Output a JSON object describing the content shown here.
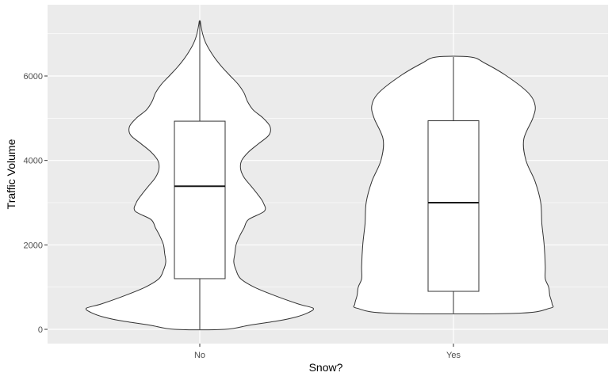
{
  "chart_data": {
    "type": "violin",
    "xlabel": "Snow?",
    "ylabel": "Traffic Volume",
    "categories": [
      "No",
      "Yes"
    ],
    "ylim": [
      -350,
      7700
    ],
    "yticks": [
      0,
      2000,
      4000,
      6000
    ],
    "grid": true,
    "colors": {
      "panel": "#ebebeb",
      "grid": "#ffffff",
      "fill": "#ffffff",
      "stroke": "#333333"
    },
    "groups": [
      {
        "name": "No",
        "min": 0,
        "q1": 1200,
        "median": 3390,
        "q3": 4930,
        "max": 7300,
        "density_profile": [
          [
            0,
            0.22
          ],
          [
            100,
            0.44
          ],
          [
            200,
            0.69
          ],
          [
            300,
            0.86
          ],
          [
            400,
            0.96
          ],
          [
            500,
            1.0
          ],
          [
            600,
            0.87
          ],
          [
            800,
            0.66
          ],
          [
            1000,
            0.48
          ],
          [
            1200,
            0.36
          ],
          [
            1400,
            0.32
          ],
          [
            1600,
            0.3
          ],
          [
            1800,
            0.31
          ],
          [
            2000,
            0.32
          ],
          [
            2200,
            0.35
          ],
          [
            2400,
            0.39
          ],
          [
            2600,
            0.43
          ],
          [
            2800,
            0.57
          ],
          [
            3000,
            0.56
          ],
          [
            3200,
            0.51
          ],
          [
            3400,
            0.45
          ],
          [
            3600,
            0.39
          ],
          [
            3800,
            0.36
          ],
          [
            4000,
            0.37
          ],
          [
            4200,
            0.43
          ],
          [
            4400,
            0.52
          ],
          [
            4600,
            0.61
          ],
          [
            4800,
            0.62
          ],
          [
            5000,
            0.56
          ],
          [
            5200,
            0.47
          ],
          [
            5400,
            0.42
          ],
          [
            5600,
            0.39
          ],
          [
            5800,
            0.34
          ],
          [
            6000,
            0.27
          ],
          [
            6200,
            0.2
          ],
          [
            6400,
            0.14
          ],
          [
            6600,
            0.09
          ],
          [
            6800,
            0.05
          ],
          [
            7000,
            0.025
          ],
          [
            7200,
            0.01
          ],
          [
            7300,
            0.004
          ]
        ]
      },
      {
        "name": "Yes",
        "min": 380,
        "q1": 900,
        "median": 3000,
        "q3": 4940,
        "max": 6450,
        "density_profile": [
          [
            380,
            0.55
          ],
          [
            500,
            0.85
          ],
          [
            600,
            0.87
          ],
          [
            800,
            0.85
          ],
          [
            1000,
            0.84
          ],
          [
            1200,
            0.81
          ],
          [
            1500,
            0.81
          ],
          [
            2000,
            0.8
          ],
          [
            2500,
            0.78
          ],
          [
            3000,
            0.77
          ],
          [
            3500,
            0.72
          ],
          [
            4000,
            0.64
          ],
          [
            4500,
            0.62
          ],
          [
            5000,
            0.7
          ],
          [
            5300,
            0.72
          ],
          [
            5600,
            0.66
          ],
          [
            6000,
            0.47
          ],
          [
            6300,
            0.28
          ],
          [
            6450,
            0.15
          ]
        ]
      }
    ]
  }
}
